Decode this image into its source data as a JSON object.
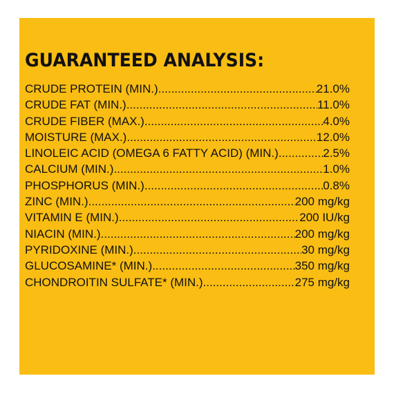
{
  "heading": "GUARANTEED ANALYSIS:",
  "rows": [
    {
      "name": "CRUDE PROTEIN (MIN.)",
      "value": "21.0%"
    },
    {
      "name": "CRUDE FAT (MIN.)",
      "value": "11.0%"
    },
    {
      "name": "CRUDE FIBER (MAX.)",
      "value": "4.0%"
    },
    {
      "name": "MOISTURE (MAX.)",
      "value": "12.0%"
    },
    {
      "name": "LINOLEIC ACID (OMEGA 6 FATTY ACID) (MIN.)",
      "value": "2.5%"
    },
    {
      "name": "CALCIUM (MIN.)",
      "value": "1.0%"
    },
    {
      "name": "PHOSPHORUS (MIN.)",
      "value": "0.8%"
    },
    {
      "name": "ZINC (MIN.)",
      "value": "200 mg/kg"
    },
    {
      "name": "VITAMIN E (MIN.)",
      "value": "200 IU/kg"
    },
    {
      "name": "NIACIN (MIN.)",
      "value": "200 mg/kg"
    },
    {
      "name": "PYRIDOXINE (MIN.)",
      "value": "30 mg/kg"
    },
    {
      "name": "GLUCOSAMINE* (MIN.)",
      "value": "350 mg/kg"
    },
    {
      "name": "CHONDROITIN SULFATE* (MIN.)",
      "value": "275 mg/kg"
    }
  ],
  "colors": {
    "panel_background": "#f9bd13",
    "text": "#111111",
    "page_background": "#ffffff"
  }
}
